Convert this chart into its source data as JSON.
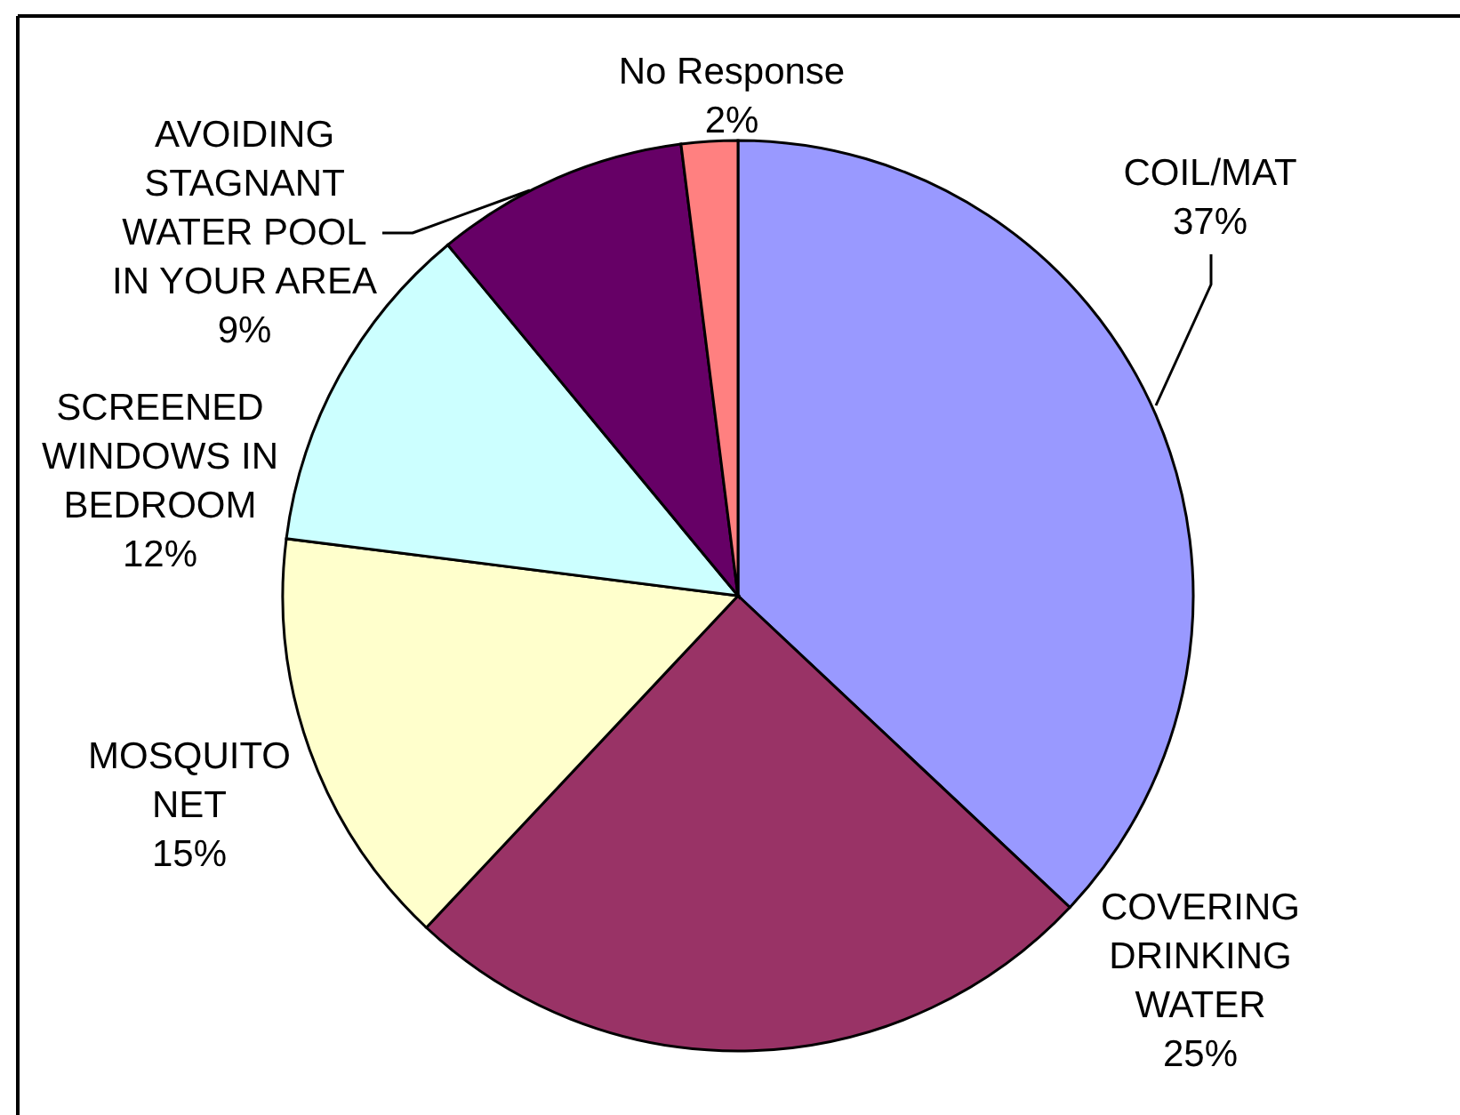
{
  "chart_data": {
    "type": "pie",
    "categories": [
      "COIL/MAT",
      "COVERING DRINKING WATER",
      "MOSQUITO NET",
      "SCREENED WINDOWS IN BEDROOM",
      "AVOIDING STAGNANT WATER POOL IN YOUR AREA",
      "No Response"
    ],
    "values": [
      37,
      25,
      15,
      12,
      9,
      2
    ],
    "colors": [
      "#9999ff",
      "#993366",
      "#ffffcc",
      "#ccffff",
      "#660066",
      "#ff8080"
    ],
    "value_labels": [
      "37%",
      "25%",
      "15%",
      "12%",
      "9%",
      "2%"
    ]
  }
}
